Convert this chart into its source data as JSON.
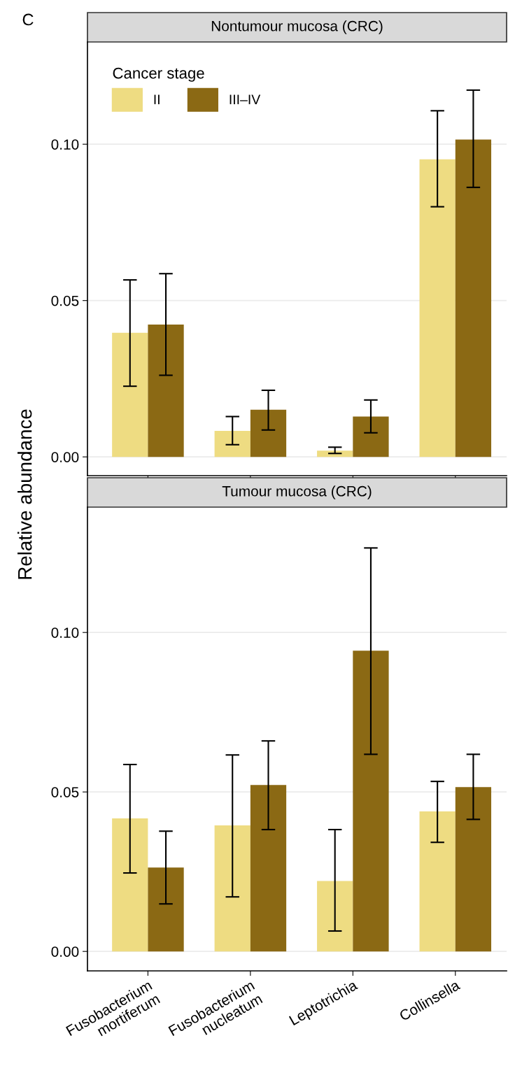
{
  "chart_data": [
    {
      "type": "bar",
      "title": "Nontumour mucosa (CRC)",
      "ylabel": "Relative abundance",
      "annotations": [
        "C"
      ],
      "categories": [
        null,
        null,
        null,
        null
      ],
      "ylim": [
        -0.006,
        0.1327
      ],
      "yticks": [
        {
          "value": 0,
          "label": "0.00"
        },
        {
          "value": 0.05,
          "label": "0.05"
        },
        {
          "value": 0.1,
          "label": "0.10"
        }
      ],
      "grid": "y",
      "legend": "top left",
      "legend_title": "Cancer stage",
      "tick_labels": "y",
      "series": [
        {
          "name": "II",
          "color": "#eedc82",
          "values": [
            0.0397,
            0.0083,
            0.002,
            0.0952
          ],
          "errors": [
            [
              0.0226,
              0.0566
            ],
            [
              0.0039,
              0.0129
            ],
            [
              0.0011,
              0.0031
            ],
            [
              0.08,
              0.1107
            ]
          ]
        },
        {
          "name": "III–IV",
          "color": "#8b6914",
          "values": [
            0.0423,
            0.0151,
            0.0129,
            0.1015
          ],
          "errors": [
            [
              0.0261,
              0.0586
            ],
            [
              0.0086,
              0.0213
            ],
            [
              0.0077,
              0.0182
            ],
            [
              0.0862,
              0.1173
            ]
          ]
        }
      ]
    },
    {
      "type": "bar",
      "title": "Tumour mucosa (CRC)",
      "categories": [
        "Fusobacterium\nmortiferum",
        "Fusobacterium\nnucleatum",
        "Leptotrichia",
        "Collinsella"
      ],
      "ylim": [
        -0.0061,
        0.1393
      ],
      "yticks": [
        {
          "value": 0,
          "label": "0.00"
        },
        {
          "value": 0.05,
          "label": "0.05"
        },
        {
          "value": 0.1,
          "label": "0.10"
        }
      ],
      "grid": "y",
      "series": [
        {
          "color": "#eedc82",
          "values": [
            0.0417,
            0.0395,
            0.0221,
            0.0439
          ],
          "errors": [
            [
              0.0246,
              0.0586
            ],
            [
              0.0171,
              0.0616
            ],
            [
              0.0064,
              0.0382
            ],
            [
              0.0342,
              0.0533
            ]
          ]
        },
        {
          "color": "#8b6914",
          "values": [
            0.0263,
            0.0522,
            0.0943,
            0.0515
          ],
          "errors": [
            [
              0.0149,
              0.0377
            ],
            [
              0.0382,
              0.066
            ],
            [
              0.0618,
              0.1265
            ],
            [
              0.0414,
              0.0618
            ]
          ]
        }
      ]
    }
  ]
}
